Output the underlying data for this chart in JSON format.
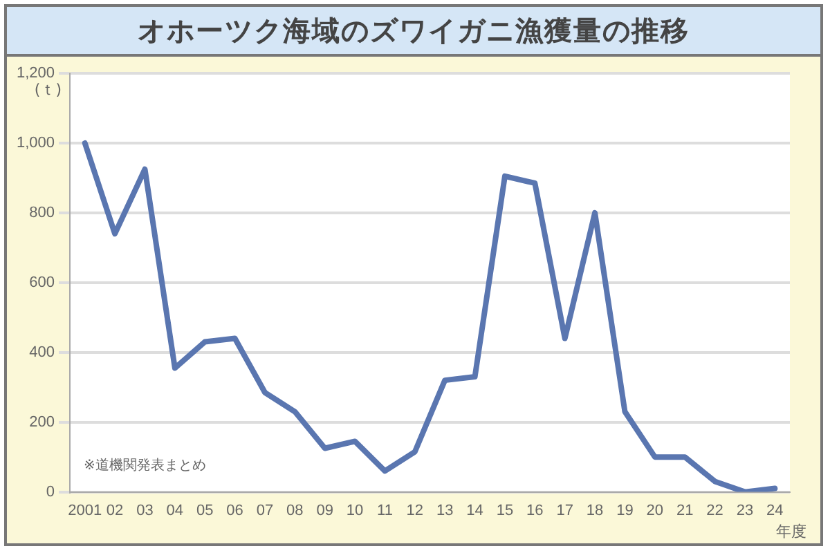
{
  "chart_data": {
    "type": "line",
    "title": "オホーツク海域のズワイガニ漁獲量の推移",
    "ylabel": "(ｔ)",
    "xlabel": "年度",
    "categories": [
      "2001",
      "02",
      "03",
      "04",
      "05",
      "06",
      "07",
      "08",
      "09",
      "10",
      "11",
      "12",
      "13",
      "14",
      "15",
      "16",
      "17",
      "18",
      "19",
      "20",
      "21",
      "22",
      "23",
      "24"
    ],
    "series": [
      {
        "color": "#5a76b0",
        "values": [
          1000,
          740,
          925,
          355,
          430,
          440,
          285,
          230,
          125,
          145,
          60,
          115,
          320,
          330,
          905,
          885,
          440,
          800,
          230,
          100,
          100,
          30,
          0,
          10
        ]
      }
    ],
    "ylim": [
      0,
      1200
    ],
    "yticks": [
      0,
      200,
      400,
      600,
      800,
      {
        "value": 1000,
        "label": "1,000"
      },
      {
        "value": 1200,
        "label": "1,200"
      }
    ],
    "annotations": [
      "※道機関発表まとめ"
    ],
    "grid": "y",
    "legend": false,
    "marker": "none",
    "line_style": "solid"
  }
}
